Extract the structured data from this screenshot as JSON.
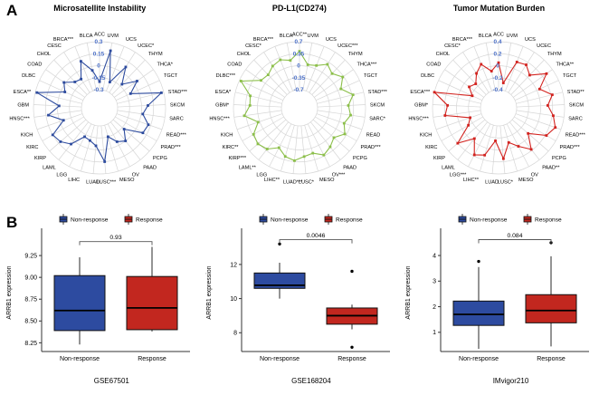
{
  "panels": {
    "a": "A",
    "b": "B"
  },
  "styles": {
    "grid_color": "#d6d6d6",
    "radial_tick_color": "#4a6fc8",
    "axis_color": "#222222",
    "non_response_color": "#2d4ba0",
    "response_color": "#c2271f"
  },
  "legend": {
    "non_response": "Non-response",
    "response": "Response"
  },
  "chart_data": [
    {
      "type": "radar",
      "title": "Microsatellite Instability",
      "color": "#2d4b9e",
      "rlim": [
        -0.3,
        0.3
      ],
      "rticks": [
        0.3,
        0.15,
        0,
        -0.15,
        -0.3
      ],
      "rtick_labels": [
        "0.3",
        "0.15",
        "0",
        "-0.15",
        "-0.3"
      ],
      "categories": [
        "ACC",
        "UVM",
        "UCS",
        "UCEC*",
        "THYM",
        "THCA*",
        "TGCT",
        "STAD***",
        "SKCM",
        "SARC",
        "READ***",
        "PRAD***",
        "PCPG",
        "PAAD",
        "OV",
        "MESO",
        "LUSC***",
        "LUAD",
        "LIHC",
        "LGG",
        "LAML",
        "KIRP",
        "KIRC",
        "KICH",
        "HNSC***",
        "GBM",
        "ESCA**",
        "DLBC",
        "COAD",
        "CHOL",
        "CESC",
        "BRCA***",
        "BLCA"
      ],
      "values": [
        -0.2,
        0.2,
        -0.18,
        0.08,
        -0.12,
        0.05,
        -0.1,
        0.27,
        0.08,
        0.02,
        0.12,
        0.1,
        -0.12,
        0.0,
        -0.05,
        -0.15,
        0.15,
        -0.05,
        -0.1,
        -0.12,
        0.05,
        0.12,
        0.15,
        -0.05,
        0.12,
        -0.02,
        0.28,
        -0.05,
        0.02,
        -0.08,
        -0.1,
        0.1,
        -0.05
      ]
    },
    {
      "type": "radar",
      "title": "PD-L1(CD274)",
      "color": "#8cbf4a",
      "rlim": [
        -0.7,
        0.7
      ],
      "rticks": [
        0.7,
        0.35,
        0,
        -0.35,
        -0.7
      ],
      "rtick_labels": [
        "0.7",
        "0.35",
        "0",
        "-0.35",
        "-0.7"
      ],
      "categories": [
        "ACC**",
        "UVM",
        "UCS",
        "UCEC***",
        "THYM",
        "THCA***",
        "TGCT",
        "STAD***",
        "SKCM",
        "SARC*",
        "READ",
        "PRAD***",
        "PCPG",
        "PAAD",
        "OV***",
        "MESO",
        "LUSC*",
        "LUAD***",
        "LIHC**",
        "LGG",
        "LAML**",
        "KIRP***",
        "KIRC**",
        "KICH",
        "HNSC***",
        "GBM*",
        "ESCA*",
        "DLBC***",
        "COAD",
        "CHOL",
        "CESC*",
        "BRCA***",
        "BLCA"
      ],
      "values": [
        0.42,
        0.05,
        0.1,
        0.28,
        0.15,
        0.32,
        0.1,
        0.38,
        0.2,
        0.28,
        0.15,
        0.3,
        0.1,
        0.22,
        0.32,
        0.15,
        0.2,
        0.32,
        0.25,
        0.08,
        0.3,
        0.38,
        0.32,
        0.05,
        0.4,
        0.22,
        0.25,
        0.65,
        0.15,
        0.1,
        0.22,
        0.28,
        0.18
      ]
    },
    {
      "type": "radar",
      "title": "Tumor Mutation Burden",
      "color": "#d2231f",
      "rlim": [
        -0.4,
        0.4
      ],
      "rticks": [
        0.4,
        0.2,
        0,
        -0.2,
        -0.4
      ],
      "rtick_labels": [
        "0.4",
        "0.2",
        "0",
        "-0.2",
        "-0.4"
      ],
      "categories": [
        "ACC",
        "UVM",
        "UCS",
        "UCEC",
        "THYM",
        "THCA**",
        "TGCT",
        "STAD**",
        "SKCM",
        "SARC",
        "READ***",
        "PRAD***",
        "PCPG",
        "PAAD**",
        "OV",
        "MESO",
        "LUSC*",
        "LUAD",
        "LIHC**",
        "LGG***",
        "LAML",
        "KIRP",
        "KIRC",
        "KICH",
        "HNSC***",
        "GBM*",
        "ESCA***",
        "DLBC",
        "COAD",
        "CHOL",
        "CESC*",
        "BRCA***",
        "BLCA"
      ],
      "values": [
        0.05,
        -0.28,
        0.12,
        0.15,
        0.05,
        0.28,
        0.05,
        0.22,
        0.12,
        0.22,
        0.3,
        0.22,
        -0.05,
        0.18,
        0.02,
        -0.1,
        0.15,
        -0.15,
        0.12,
        0.18,
        -0.05,
        0.2,
        -0.12,
        -0.2,
        0.2,
        0.15,
        0.4,
        -0.22,
        -0.1,
        -0.15,
        -0.02,
        0.08,
        -0.08
      ]
    },
    {
      "type": "box",
      "title": "GSE67501",
      "ylabel": "ARRB1 expression",
      "pvalue": "0.93",
      "bracket_y": 9.41,
      "ylim": [
        8.15,
        9.5
      ],
      "ytick_values": [
        8.25,
        8.5,
        8.75,
        9.0,
        9.25
      ],
      "ytick_labels": [
        "8.25",
        "8.50",
        "8.75",
        "9.00",
        "9.25"
      ],
      "series": [
        {
          "name": "Non-response",
          "color": "#2d4ba0",
          "q1": 8.39,
          "median": 8.62,
          "q3": 9.02,
          "whisker_low": 8.23,
          "whisker_high": 9.23,
          "outliers": []
        },
        {
          "name": "Response",
          "color": "#c2271f",
          "q1": 8.4,
          "median": 8.65,
          "q3": 9.01,
          "whisker_low": 8.38,
          "whisker_high": 9.35,
          "outliers": []
        }
      ]
    },
    {
      "type": "box",
      "title": "GSE168204",
      "ylabel": "ARRB1 expression",
      "pvalue": "0.0046",
      "bracket_y": 13.45,
      "ylim": [
        6.9,
        13.8
      ],
      "ytick_values": [
        8,
        10,
        12
      ],
      "ytick_labels": [
        "8",
        "10",
        "12"
      ],
      "series": [
        {
          "name": "Non-response",
          "color": "#2d4ba0",
          "q1": 10.6,
          "median": 10.78,
          "q3": 11.5,
          "whisker_low": 10.0,
          "whisker_high": 12.1,
          "outliers": [
            13.2
          ]
        },
        {
          "name": "Response",
          "color": "#c2271f",
          "q1": 8.5,
          "median": 9.0,
          "q3": 9.45,
          "whisker_low": 8.2,
          "whisker_high": 9.65,
          "outliers": [
            11.6,
            7.15
          ]
        }
      ]
    },
    {
      "type": "box",
      "title": "IMvigor210",
      "ylabel": "ARRB1 expression",
      "pvalue": "0.084",
      "bracket_y": 4.62,
      "ylim": [
        0.25,
        4.85
      ],
      "ytick_values": [
        1,
        2,
        3,
        4
      ],
      "ytick_labels": [
        "1",
        "2",
        "3",
        "4"
      ],
      "series": [
        {
          "name": "Non-response",
          "color": "#2d4ba0",
          "q1": 1.27,
          "median": 1.7,
          "q3": 2.22,
          "whisker_low": 0.35,
          "whisker_high": 3.55,
          "outliers": [
            3.77
          ]
        },
        {
          "name": "Response",
          "color": "#c2271f",
          "q1": 1.37,
          "median": 1.85,
          "q3": 2.47,
          "whisker_low": 0.45,
          "whisker_high": 3.97,
          "outliers": [
            4.5
          ]
        }
      ]
    }
  ]
}
